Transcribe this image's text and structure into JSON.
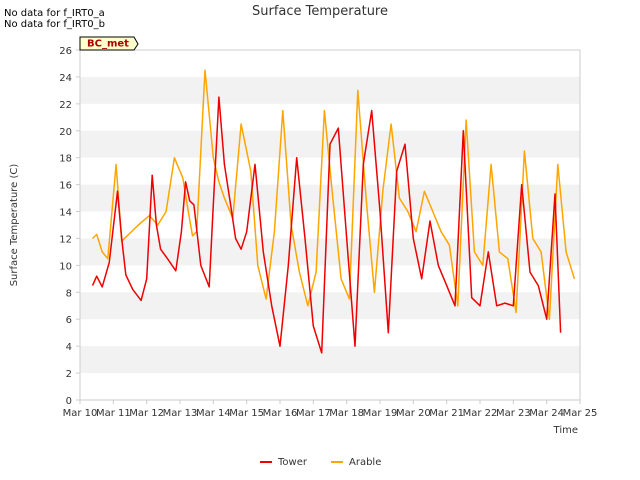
{
  "notes": [
    "No data for f_IRT0_a",
    "No data for f_IRT0_b"
  ],
  "badge": "BC_met",
  "colors": {
    "background_band": "#f2f2f2",
    "tower": "#ee0000",
    "arable": "#ffa500",
    "badge_fill": "#ffffcc",
    "badge_text": "#aa0000"
  },
  "chart_data": {
    "type": "line",
    "title": "Surface Temperature",
    "xlabel": "Time",
    "ylabel": "Surface Temperature (C)",
    "x_ticks": [
      "Mar 10",
      "Mar 11",
      "Mar 12",
      "Mar 13",
      "Mar 14",
      "Mar 15",
      "Mar 16",
      "Mar 17",
      "Mar 18",
      "Mar 19",
      "Mar 20",
      "Mar 21",
      "Mar 22",
      "Mar 23",
      "Mar 24",
      "Mar 25"
    ],
    "x_range": [
      "Mar 10",
      "Mar 25"
    ],
    "y_ticks": [
      0,
      2,
      4,
      6,
      8,
      10,
      12,
      14,
      16,
      18,
      20,
      22,
      24,
      26
    ],
    "ylim": [
      0,
      26
    ],
    "grid": "horizontal alternating bands",
    "legend": "bottom-center",
    "series": [
      {
        "name": "Tower",
        "x": [
          "Mar 10 09:00",
          "Mar 10 12:00",
          "Mar 10 16:00",
          "Mar 10 21:00",
          "Mar 11 03:00",
          "Mar 11 06:00",
          "Mar 11 09:00",
          "Mar 11 14:00",
          "Mar 11 20:00",
          "Mar 12 00:00",
          "Mar 12 04:00",
          "Mar 12 07:00",
          "Mar 12 10:00",
          "Mar 12 15:00",
          "Mar 12 21:00",
          "Mar 13 01:00",
          "Mar 13 04:00",
          "Mar 13 07:00",
          "Mar 13 10:00",
          "Mar 13 15:00",
          "Mar 13 21:00",
          "Mar 14 00:00",
          "Mar 14 04:00",
          "Mar 14 08:00",
          "Mar 14 12:00",
          "Mar 14 16:00",
          "Mar 14 20:00",
          "Mar 15 00:00",
          "Mar 15 06:00",
          "Mar 15 12:00",
          "Mar 15 18:00",
          "Mar 16 00:00",
          "Mar 16 06:00",
          "Mar 16 12:00",
          "Mar 16 18:00",
          "Mar 17 00:00",
          "Mar 17 06:00",
          "Mar 17 12:00",
          "Mar 17 18:00",
          "Mar 18 00:00",
          "Mar 18 06:00",
          "Mar 18 12:00",
          "Mar 18 18:00",
          "Mar 19 00:00",
          "Mar 19 06:00",
          "Mar 19 12:00",
          "Mar 19 18:00",
          "Mar 20 00:00",
          "Mar 20 06:00",
          "Mar 20 12:00",
          "Mar 20 18:00",
          "Mar 21 00:00",
          "Mar 21 06:00",
          "Mar 21 12:00",
          "Mar 21 18:00",
          "Mar 22 00:00",
          "Mar 22 06:00",
          "Mar 22 12:00",
          "Mar 22 18:00",
          "Mar 23 00:00",
          "Mar 23 06:00",
          "Mar 23 12:00",
          "Mar 23 18:00",
          "Mar 24 00:00",
          "Mar 24 06:00",
          "Mar 24 10:00"
        ],
        "values": [
          8.5,
          9.2,
          8.4,
          10.2,
          15.5,
          12.0,
          9.3,
          8.2,
          7.4,
          9.0,
          16.7,
          13.0,
          11.2,
          10.5,
          9.6,
          12.5,
          16.2,
          14.8,
          14.5,
          10.0,
          8.4,
          14.5,
          22.5,
          17.5,
          14.8,
          12.0,
          11.2,
          12.5,
          17.5,
          11.0,
          7.0,
          4.0,
          10.0,
          18.0,
          12.0,
          5.5,
          3.5,
          19.0,
          20.2,
          12.0,
          4.0,
          17.5,
          21.5,
          14.0,
          5.0,
          17.0,
          19.0,
          12.0,
          9.0,
          13.3,
          10.0,
          8.5,
          7.0,
          20.0,
          7.6,
          7.0,
          11.0,
          7.0,
          7.2,
          7.0,
          16.0,
          9.5,
          8.5,
          6.0,
          15.3,
          5.0
        ]
      },
      {
        "name": "Arable",
        "x": [
          "Mar 10 09:00",
          "Mar 10 12:00",
          "Mar 10 16:00",
          "Mar 10 20:00",
          "Mar 11 02:00",
          "Mar 11 06:00",
          "Mar 11 10:00",
          "Mar 11 18:00",
          "Mar 12 02:00",
          "Mar 12 08:00",
          "Mar 12 14:00",
          "Mar 12 20:00",
          "Mar 13 02:00",
          "Mar 13 06:00",
          "Mar 13 09:00",
          "Mar 13 12:00",
          "Mar 13 18:00",
          "Mar 14 00:00",
          "Mar 14 04:00",
          "Mar 14 08:00",
          "Mar 14 14:00",
          "Mar 14 20:00",
          "Mar 15 03:00",
          "Mar 15 08:00",
          "Mar 15 14:00",
          "Mar 15 20:00",
          "Mar 16 02:00",
          "Mar 16 08:00",
          "Mar 16 14:00",
          "Mar 16 20:00",
          "Mar 17 02:00",
          "Mar 17 08:00",
          "Mar 17 14:00",
          "Mar 17 20:00",
          "Mar 18 02:00",
          "Mar 18 08:00",
          "Mar 18 14:00",
          "Mar 18 20:00",
          "Mar 19 02:00",
          "Mar 19 08:00",
          "Mar 19 14:00",
          "Mar 19 20:00",
          "Mar 20 02:00",
          "Mar 20 08:00",
          "Mar 20 14:00",
          "Mar 20 20:00",
          "Mar 21 02:00",
          "Mar 21 08:00",
          "Mar 21 14:00",
          "Mar 21 20:00",
          "Mar 22 02:00",
          "Mar 22 08:00",
          "Mar 22 14:00",
          "Mar 22 20:00",
          "Mar 23 02:00",
          "Mar 23 08:00",
          "Mar 23 14:00",
          "Mar 23 20:00",
          "Mar 24 02:00",
          "Mar 24 08:00",
          "Mar 24 14:00",
          "Mar 24 20:00"
        ],
        "values": [
          12.0,
          12.3,
          11.0,
          10.5,
          17.5,
          11.8,
          12.2,
          13.0,
          13.7,
          13.0,
          14.0,
          18.0,
          16.5,
          14.0,
          12.2,
          12.5,
          24.5,
          18.0,
          16.2,
          15.0,
          13.5,
          20.5,
          17.0,
          10.0,
          7.5,
          12.5,
          21.5,
          13.0,
          9.5,
          7.0,
          9.5,
          21.5,
          15.0,
          9.0,
          7.5,
          23.0,
          15.0,
          8.0,
          15.5,
          20.5,
          15.0,
          14.0,
          12.5,
          15.5,
          14.0,
          12.5,
          11.5,
          7.0,
          20.8,
          11.0,
          10.0,
          17.5,
          11.0,
          10.5,
          6.5,
          18.5,
          12.0,
          11.0,
          6.0,
          17.5,
          11.0,
          9.0
        ]
      }
    ]
  }
}
